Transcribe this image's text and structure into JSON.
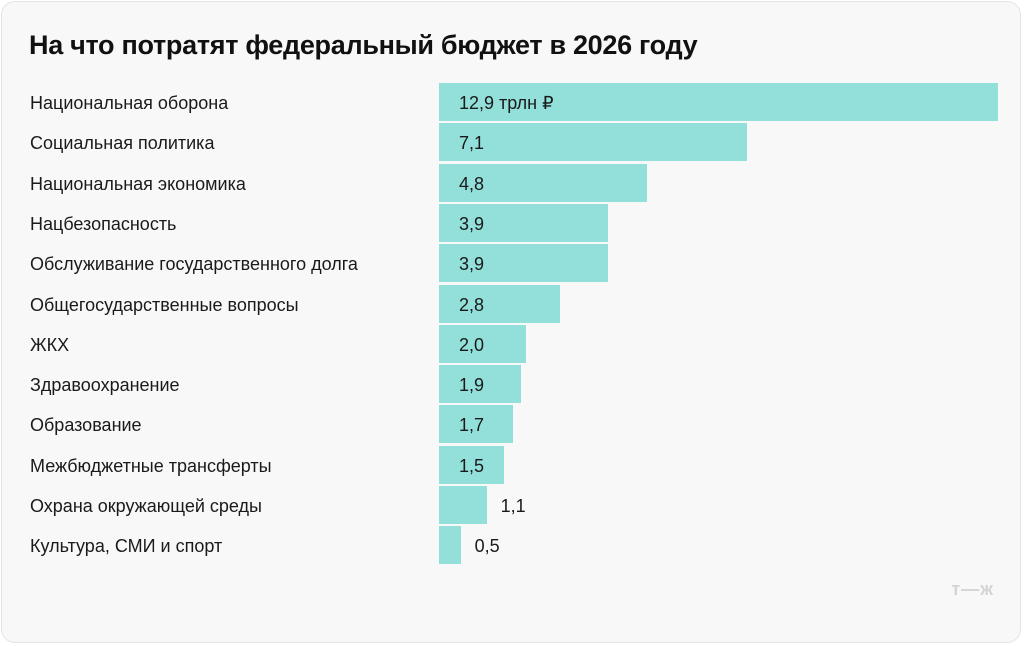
{
  "chart_data": {
    "type": "bar",
    "orientation": "horizontal",
    "title": "На что потратят федеральный бюджет в 2026 году",
    "unit": "трлн ₽",
    "categories": [
      "Национальная оборона",
      "Социальная политика",
      "Национальная экономика",
      "Нацбезопасность",
      "Обслуживание государственного долга",
      "Общегосударственные вопросы",
      "ЖКХ",
      "Здравоохранение",
      "Образование",
      "Межбюджетные трансферты",
      "Охрана окружающей среды",
      "Культура, СМИ и спорт"
    ],
    "values": [
      12.9,
      7.1,
      4.8,
      3.9,
      3.9,
      2.8,
      2.0,
      1.9,
      1.7,
      1.5,
      1.1,
      0.5
    ],
    "labels": [
      "12,9 трлн ₽",
      "7,1",
      "4,8",
      "3,9",
      "3,9",
      "2,8",
      "2,0",
      "1,9",
      "1,7",
      "1,5",
      "1,1",
      "0,5"
    ],
    "bar_color": "#92e0d9",
    "grid": false
  },
  "logo": "т—ж"
}
